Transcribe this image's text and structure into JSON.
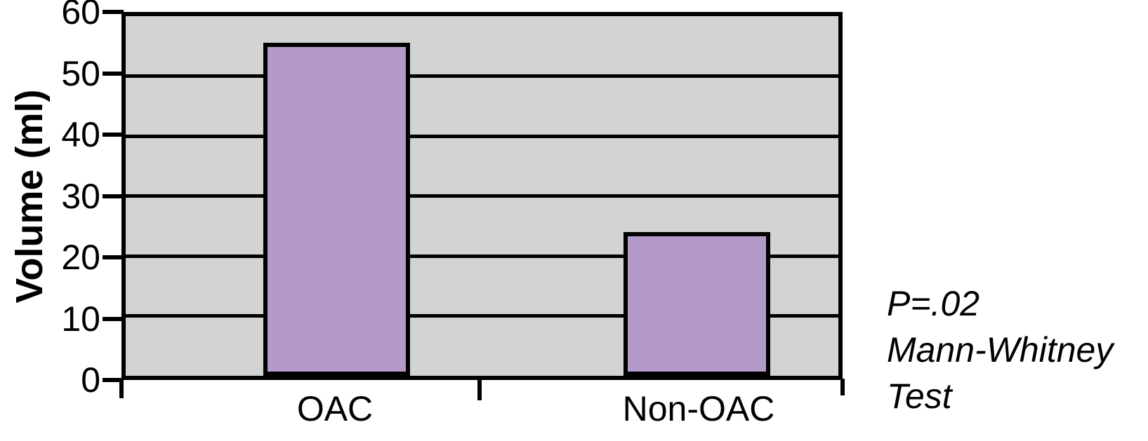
{
  "chart_data": {
    "type": "bar",
    "title": "",
    "categories": [
      "OAC",
      "Non-OAC"
    ],
    "values": [
      55.5,
      24
    ],
    "xlabel": "",
    "ylabel": "Volume (ml)",
    "ylim": [
      0,
      60
    ],
    "yticks": [
      0,
      10,
      20,
      30,
      40,
      50,
      60
    ],
    "grid": "horizontal black gridlines at every ytick",
    "legend_position": "none",
    "colors": {
      "bar_fill": "#b39aca",
      "bar_border": "#000000",
      "plot_background": "#d2d3d2",
      "gridline": "#000000",
      "text": "#000000",
      "page_background": "#ffffff"
    },
    "annotation": {
      "lines": [
        "P=.02",
        "Mann-Whitney",
        "Test"
      ],
      "style": "italic",
      "position": "right of plot, lower area"
    }
  }
}
